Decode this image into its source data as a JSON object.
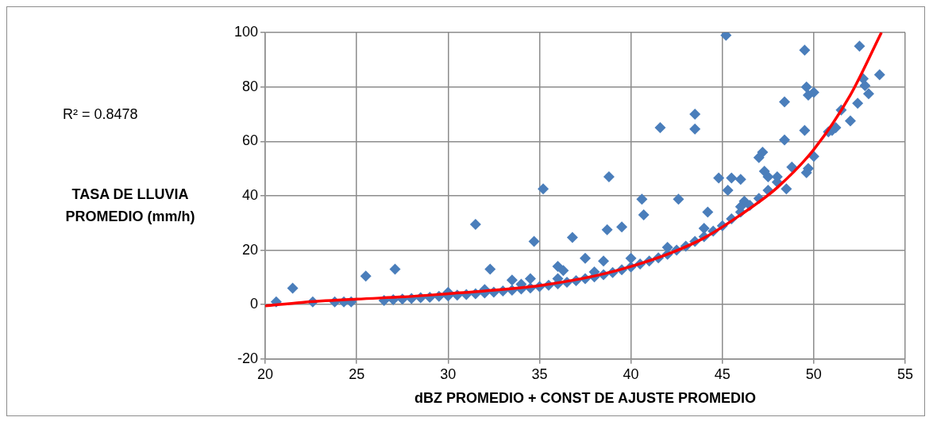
{
  "chart_data": {
    "type": "scatter",
    "xlabel": "dBZ PROMEDIO + CONST DE AJUSTE PROMEDIO",
    "ylabel": "TASA DE LLUVIA PROMEDIO (mm/h)",
    "annotations": [
      "R² = 0.8478"
    ],
    "xlim": [
      20,
      55
    ],
    "xticks": [
      20,
      25,
      30,
      35,
      40,
      45,
      50,
      55
    ],
    "ylim": [
      -20,
      100
    ],
    "yticks": [
      -20,
      0,
      20,
      40,
      60,
      80,
      100
    ],
    "grid": true,
    "legend": false,
    "series": [
      {
        "marker": "diamond",
        "color": "#4a7ebb",
        "x": [
          20.6,
          21.5,
          22.6,
          23.8,
          24.3,
          24.7,
          25.5,
          27.1,
          31.5,
          32.3,
          34.7,
          35.2,
          36.8,
          38.8,
          38.7,
          40.6,
          40.7,
          41.6,
          42.6,
          43.5,
          43.5,
          45.2,
          44.2,
          45.5,
          46,
          48.4,
          48.4,
          49.5,
          49.6,
          49.7,
          49.5,
          50,
          47.2,
          47,
          47.3,
          50,
          49.7,
          49.6,
          48.8,
          48.5,
          52.5,
          52.7,
          52.8,
          53,
          53.6,
          52.4,
          52,
          51.5,
          51.2,
          50.8,
          51,
          44.8,
          45.3,
          46.2,
          47.5,
          38.5,
          37.5,
          39.5,
          36,
          36.3,
          33.5,
          34.5,
          26.5,
          27,
          27.5,
          28,
          28.5,
          29,
          29.5,
          30,
          30.5,
          31,
          31.5,
          32,
          32.5,
          33,
          33.5,
          34,
          34.5,
          35,
          35.5,
          36,
          36.5,
          37,
          37.5,
          38,
          38.5,
          39,
          39.5,
          40,
          40.5,
          41,
          41.5,
          42,
          42.5,
          43,
          43.5,
          44,
          44.5,
          45,
          45.5,
          46,
          46.5,
          47,
          47.5,
          48,
          30,
          32,
          34,
          36,
          38,
          40,
          42,
          44,
          46,
          48
        ],
        "values": [
          1,
          6,
          1,
          1,
          1,
          1,
          10.5,
          13,
          29.5,
          13,
          23.2,
          42.5,
          24.7,
          47,
          27.5,
          38.7,
          33,
          65,
          38.7,
          70,
          64.5,
          99,
          34,
          46.5,
          46,
          74.5,
          60.5,
          93.5,
          80,
          77,
          64,
          78,
          56,
          54,
          49,
          54.5,
          50,
          48.5,
          50.5,
          42.5,
          95,
          83,
          80.5,
          77.5,
          84.5,
          74,
          67.5,
          71.5,
          65,
          63.5,
          64,
          46.5,
          42,
          38,
          47,
          16,
          17,
          28.5,
          14,
          12.5,
          9,
          9.5,
          1.5,
          1.8,
          2,
          2.2,
          2.5,
          2.7,
          3,
          3.2,
          3.5,
          3.7,
          4,
          4.3,
          4.6,
          5,
          5.3,
          5.7,
          6.1,
          6.6,
          7.1,
          7.6,
          8.2,
          8.8,
          9.5,
          10.2,
          11,
          11.8,
          12.8,
          13.8,
          14.9,
          16,
          17.2,
          18.5,
          20,
          21.5,
          23.2,
          25,
          27,
          29,
          31.5,
          34,
          36.5,
          39,
          42,
          45,
          4.5,
          5.5,
          7.5,
          9.5,
          12,
          17,
          21,
          28,
          36,
          47
        ]
      },
      {
        "type": "line",
        "marker": "none",
        "color": "#ff0000",
        "x": [
          20,
          22,
          25,
          28,
          30,
          32,
          35,
          38,
          40,
          42,
          44,
          46,
          48,
          50,
          52,
          53.7
        ],
        "values": [
          -0.5,
          0.8,
          2,
          3,
          4,
          5,
          7,
          10.5,
          14,
          18.5,
          24.5,
          33,
          43,
          57,
          77,
          100
        ]
      }
    ]
  }
}
